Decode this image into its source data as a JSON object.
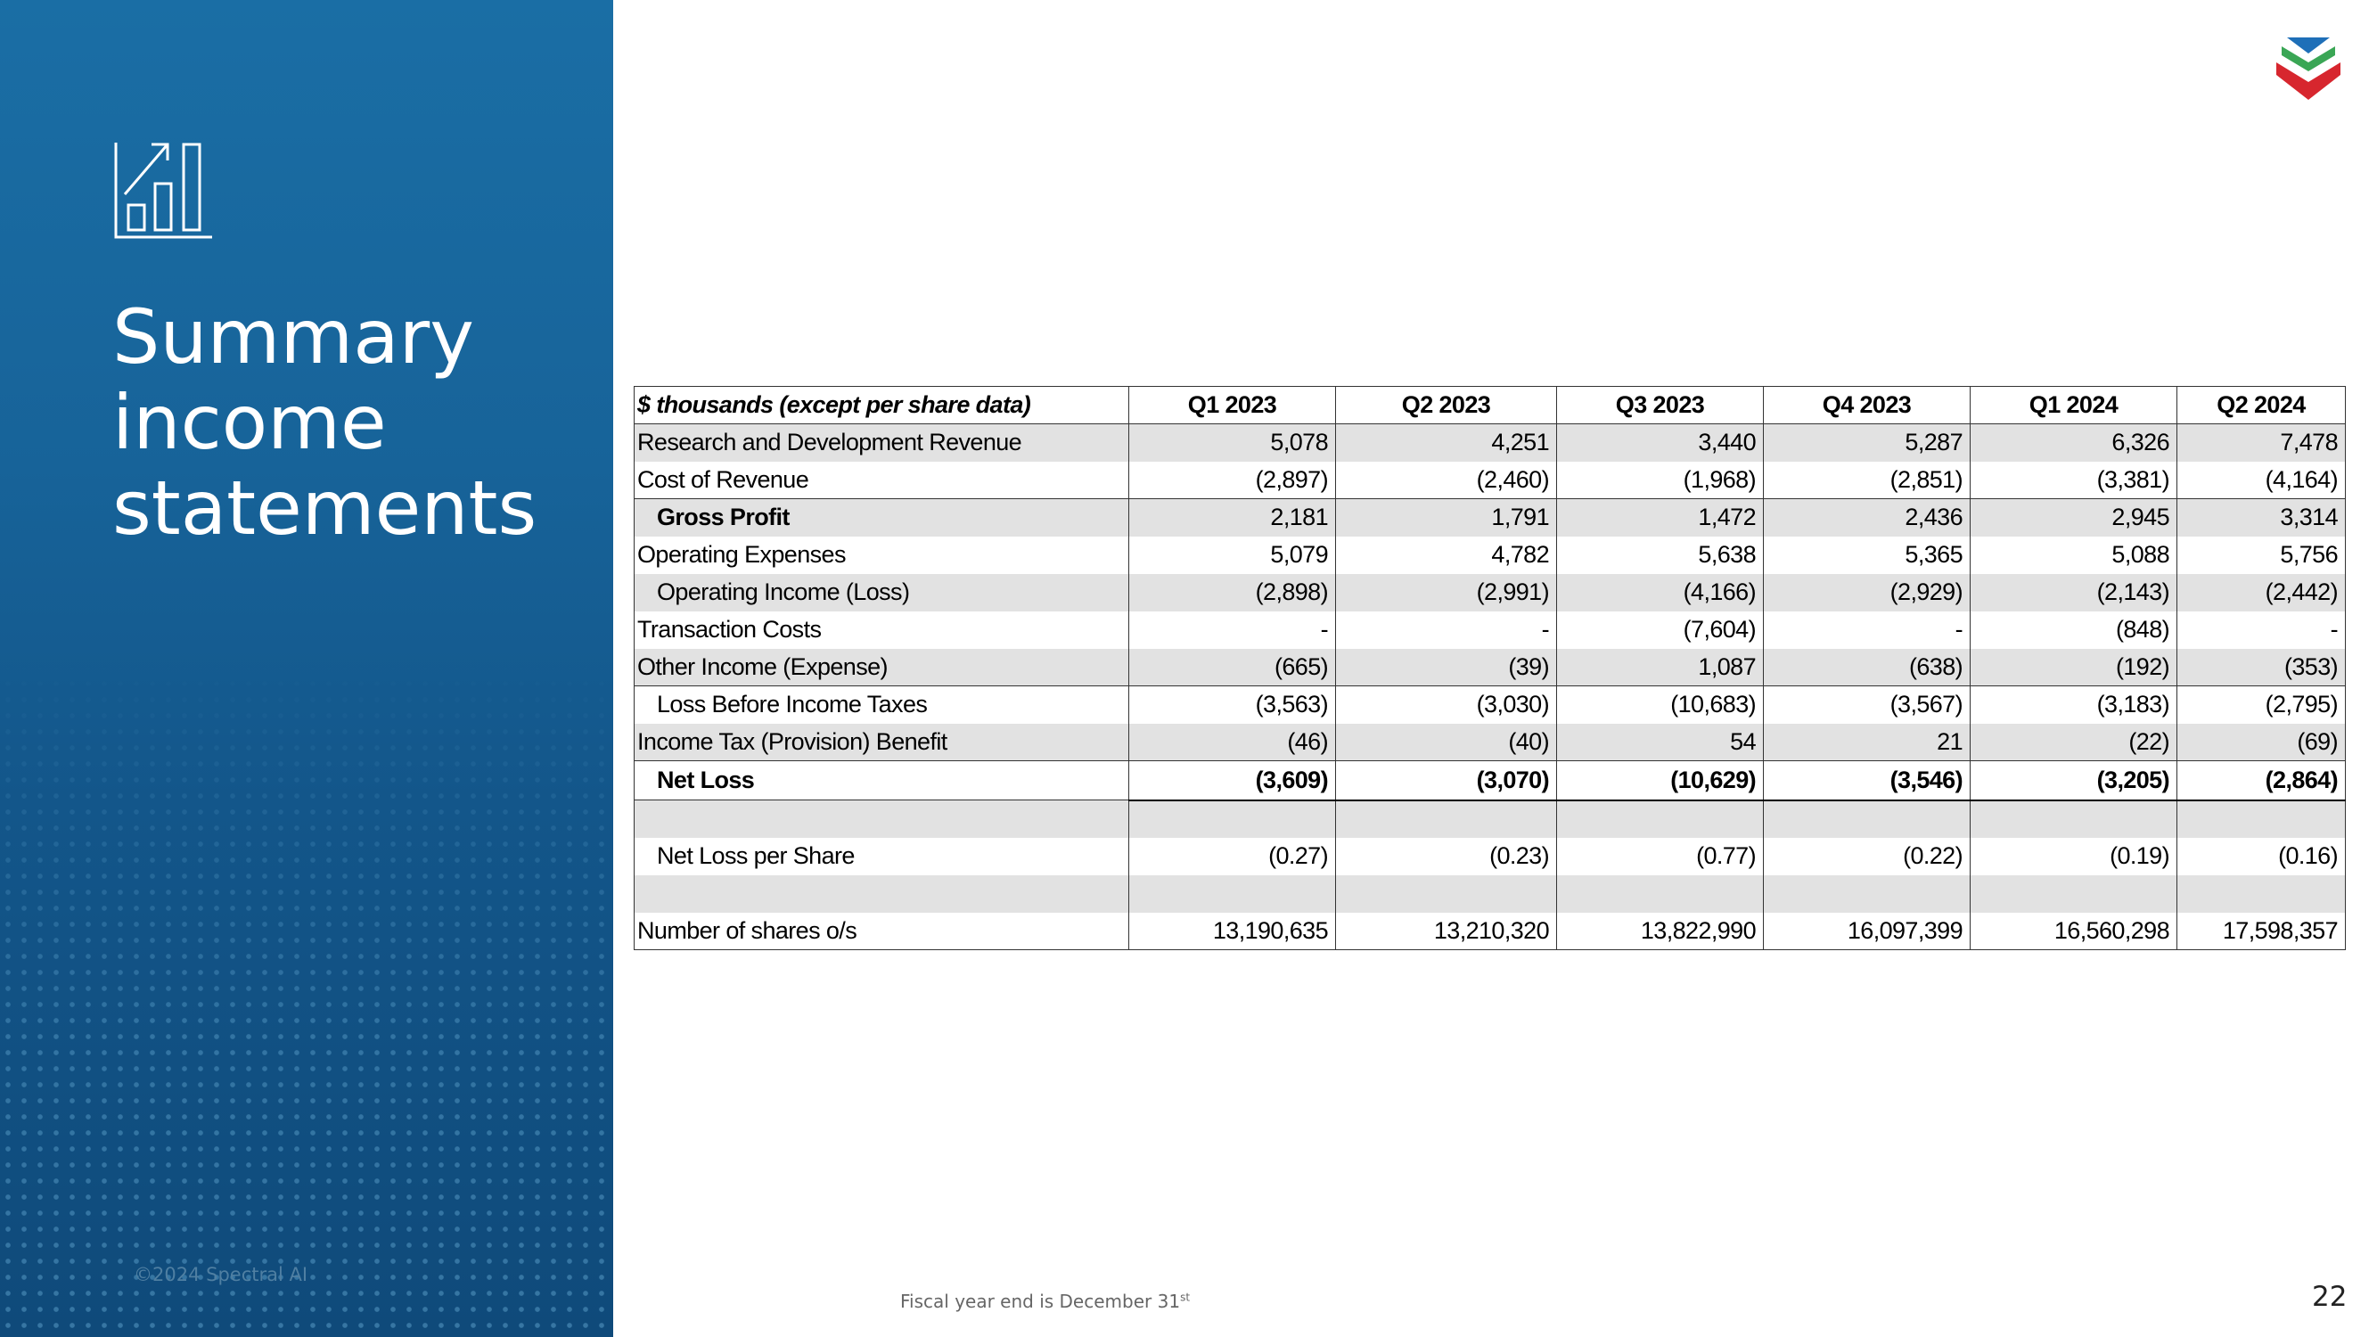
{
  "sidebar": {
    "title_lines": [
      "Summary",
      "income",
      "statements"
    ],
    "copyright": "©2024 Spectral AI",
    "icon": "chart-growth-icon"
  },
  "logo": {
    "icon": "chevron-stack-logo",
    "colors": [
      "#1e6fb8",
      "#3aa655",
      "#d7262e"
    ]
  },
  "table": {
    "headers": [
      "$ thousands (except per share data)",
      "Q1 2023",
      "Q2 2023",
      "Q3 2023",
      "Q4 2023",
      "Q1 2024",
      "Q2 2024"
    ],
    "rows": [
      {
        "label": "Research and Development Revenue",
        "values": [
          "5,078",
          "4,251",
          "3,440",
          "5,287",
          "6,326",
          "7,478"
        ]
      },
      {
        "label": "Cost of Revenue",
        "values": [
          "(2,897)",
          "(2,460)",
          "(1,968)",
          "(2,851)",
          "(3,381)",
          "(4,164)"
        ]
      },
      {
        "label": "Gross Profit",
        "values": [
          "2,181",
          "1,791",
          "1,472",
          "2,436",
          "2,945",
          "3,314"
        ]
      },
      {
        "label": "Operating Expenses",
        "values": [
          "5,079",
          "4,782",
          "5,638",
          "5,365",
          "5,088",
          "5,756"
        ]
      },
      {
        "label": "Operating Income (Loss)",
        "values": [
          "(2,898)",
          "(2,991)",
          "(4,166)",
          "(2,929)",
          "(2,143)",
          "(2,442)"
        ]
      },
      {
        "label": "Transaction Costs",
        "values": [
          "-",
          "-",
          "(7,604)",
          "-",
          "(848)",
          "-"
        ]
      },
      {
        "label": "Other Income (Expense)",
        "values": [
          "(665)",
          "(39)",
          "1,087",
          "(638)",
          "(192)",
          "(353)"
        ]
      },
      {
        "label": "Loss Before Income Taxes",
        "values": [
          "(3,563)",
          "(3,030)",
          "(10,683)",
          "(3,567)",
          "(3,183)",
          "(2,795)"
        ]
      },
      {
        "label": "Income Tax (Provision) Benefit",
        "values": [
          "(46)",
          "(40)",
          "54",
          "21",
          "(22)",
          "(69)"
        ]
      },
      {
        "label": "Net Loss",
        "values": [
          "(3,609)",
          "(3,070)",
          "(10,629)",
          "(3,546)",
          "(3,205)",
          "(2,864)"
        ]
      },
      {
        "label": "",
        "values": [
          "",
          "",
          "",
          "",
          "",
          ""
        ]
      },
      {
        "label": "Net Loss per Share",
        "values": [
          "(0.27)",
          "(0.23)",
          "(0.77)",
          "(0.22)",
          "(0.19)",
          "(0.16)"
        ]
      },
      {
        "label": "",
        "values": [
          "",
          "",
          "",
          "",
          "",
          ""
        ]
      },
      {
        "label": "Number of shares o/s",
        "values": [
          "13,190,635",
          "13,210,320",
          "13,822,990",
          "16,097,399",
          "16,560,298",
          "17,598,357"
        ]
      }
    ]
  },
  "footer": {
    "footnote": "Fiscal year end is December 31",
    "footnote_sup": "st",
    "page_number": "22"
  }
}
